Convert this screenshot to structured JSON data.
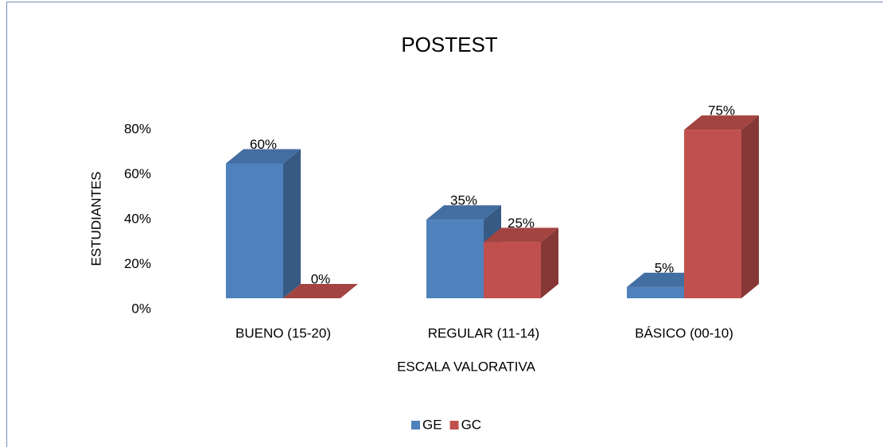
{
  "chart_data": {
    "type": "bar3d",
    "title": "POSTEST",
    "x_label": "ESCALA VALORATIVA",
    "y_label": "ESTUDIANTES",
    "categories": [
      "BUENO (15-20)",
      "REGULAR (11-14)",
      "BÁSICO (00-10)"
    ],
    "series": [
      {
        "name": "GE",
        "color": "#4f81bd",
        "values": [
          60,
          35,
          5
        ],
        "value_labels": [
          "60%",
          "35%",
          "5%"
        ]
      },
      {
        "name": "GC",
        "color": "#c0504d",
        "values": [
          0,
          25,
          75
        ],
        "value_labels": [
          "0%",
          "25%",
          "75%"
        ]
      }
    ],
    "ylim": [
      0,
      80
    ],
    "yticks": [
      {
        "value": 0,
        "label": "0%"
      },
      {
        "value": 20,
        "label": "20%"
      },
      {
        "value": 40,
        "label": "40%"
      },
      {
        "value": 60,
        "label": "60%"
      },
      {
        "value": 80,
        "label": "80%"
      }
    ],
    "legend": "bottom"
  }
}
